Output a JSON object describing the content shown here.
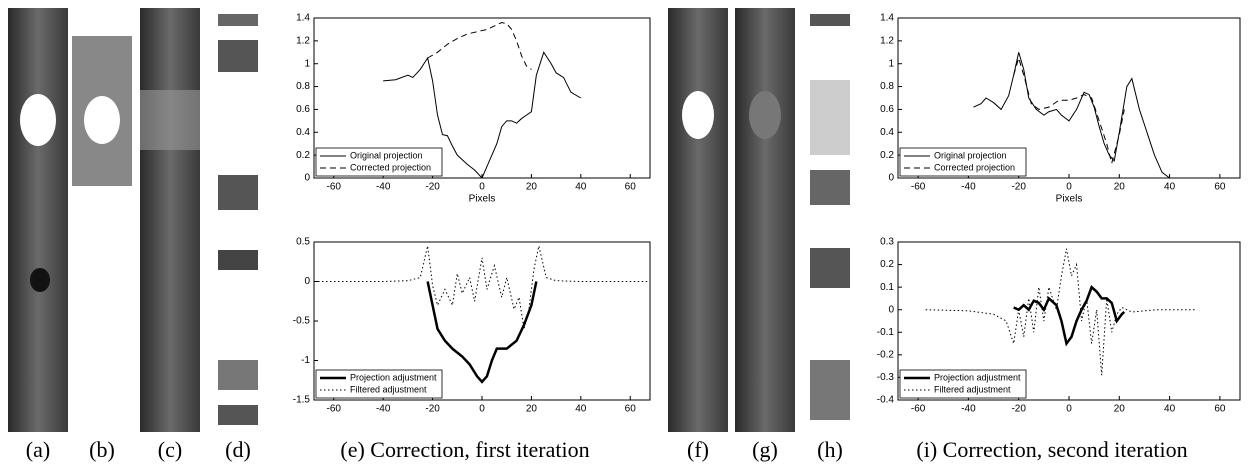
{
  "captions": [
    "(a)",
    "(b)",
    "(c)",
    "(d)",
    "(e) Correction, first iteration",
    "(f)",
    "(g)",
    "(h)",
    "(i) Correction, second iteration"
  ],
  "charts": [
    {
      "type": "line",
      "xlabel": "Pixels",
      "xlim": [
        -68,
        68
      ],
      "xticks": [
        -60,
        -40,
        -20,
        0,
        20,
        40,
        60
      ],
      "ylim": [
        0,
        1.4
      ],
      "yticks": [
        0,
        0.2,
        0.4,
        0.6,
        0.8,
        1,
        1.2,
        1.4
      ],
      "legend": "lower-left",
      "series": [
        {
          "name": "Original projection",
          "color": "#000000",
          "line_style": "solid",
          "line_width": 1,
          "x": [
            -40,
            -35,
            -30,
            -28,
            -25,
            -22,
            -20,
            -18,
            -16,
            -14,
            -12,
            -10,
            -6,
            -3,
            0,
            3,
            6,
            8,
            10,
            12,
            14,
            16,
            18,
            20,
            22,
            25,
            28,
            30,
            33,
            36,
            40
          ],
          "values": [
            0.85,
            0.86,
            0.9,
            0.88,
            0.95,
            1.05,
            0.85,
            0.55,
            0.38,
            0.37,
            0.28,
            0.2,
            0.12,
            0.07,
            0,
            0.15,
            0.3,
            0.45,
            0.5,
            0.5,
            0.48,
            0.52,
            0.55,
            0.58,
            0.9,
            1.1,
            1.0,
            0.92,
            0.88,
            0.75,
            0.7
          ]
        },
        {
          "name": "Corrected projection",
          "color": "#000000",
          "line_style": "dashed",
          "line_width": 1,
          "x": [
            -22,
            -18,
            -14,
            -10,
            -6,
            -2,
            2,
            6,
            8,
            10,
            12,
            14,
            16,
            18,
            20
          ],
          "values": [
            1.05,
            1.1,
            1.17,
            1.22,
            1.26,
            1.28,
            1.3,
            1.34,
            1.36,
            1.35,
            1.3,
            1.2,
            1.07,
            0.98,
            0.95
          ]
        }
      ]
    },
    {
      "type": "line",
      "xlim": [
        -68,
        68
      ],
      "xticks": [
        -60,
        -40,
        -20,
        0,
        20,
        40,
        60
      ],
      "ylim": [
        -1.5,
        0.5
      ],
      "yticks": [
        -1.5,
        -1,
        -0.5,
        0,
        0.5
      ],
      "legend": "lower-left",
      "series": [
        {
          "name": "Projection adjustment",
          "color": "#000000",
          "line_style": "solid",
          "line_width": 2.5,
          "x": [
            -22,
            -20,
            -18,
            -15,
            -12,
            -8,
            -5,
            -2,
            0,
            2,
            4,
            6,
            10,
            14,
            17,
            20,
            22
          ],
          "values": [
            0,
            -0.3,
            -0.6,
            -0.75,
            -0.85,
            -0.95,
            -1.05,
            -1.2,
            -1.27,
            -1.2,
            -1.0,
            -0.85,
            -0.85,
            -0.75,
            -0.55,
            -0.3,
            0
          ]
        },
        {
          "name": "Filtered adjustment",
          "color": "#000000",
          "line_style": "dotted",
          "line_width": 1,
          "x": [
            -68,
            -40,
            -30,
            -25,
            -22,
            -20,
            -18,
            -15,
            -12,
            -10,
            -8,
            -5,
            -3,
            0,
            2,
            5,
            8,
            10,
            13,
            15,
            17,
            19,
            21,
            23,
            26,
            30,
            40,
            68
          ],
          "values": [
            0,
            0,
            0.01,
            0.05,
            0.45,
            -0.05,
            -0.3,
            -0.1,
            -0.3,
            0.1,
            -0.15,
            0.05,
            -0.25,
            0.3,
            -0.1,
            0.2,
            -0.2,
            0.05,
            -0.35,
            -0.2,
            -0.6,
            -0.35,
            0.15,
            0.45,
            0.05,
            0.01,
            0,
            0
          ]
        }
      ]
    },
    {
      "type": "line",
      "xlabel": "Pixels",
      "xlim": [
        -68,
        68
      ],
      "xticks": [
        -60,
        -40,
        -20,
        0,
        20,
        40,
        60
      ],
      "ylim": [
        0,
        1.4
      ],
      "yticks": [
        0,
        0.2,
        0.4,
        0.6,
        0.8,
        1,
        1.2,
        1.4
      ],
      "legend": "lower-left",
      "series": [
        {
          "name": "Original projection",
          "color": "#000000",
          "line_style": "solid",
          "line_width": 1,
          "x": [
            -38,
            -35,
            -33,
            -30,
            -27,
            -24,
            -22,
            -20,
            -18,
            -16,
            -13,
            -10,
            -8,
            -5,
            -3,
            0,
            3,
            6,
            8,
            10,
            12,
            14,
            16,
            18,
            20,
            23,
            25,
            28,
            31,
            34,
            37,
            40
          ],
          "values": [
            0.62,
            0.65,
            0.7,
            0.66,
            0.6,
            0.72,
            0.9,
            1.1,
            0.95,
            0.7,
            0.6,
            0.55,
            0.58,
            0.6,
            0.55,
            0.5,
            0.6,
            0.75,
            0.73,
            0.62,
            0.45,
            0.3,
            0.2,
            0.15,
            0.4,
            0.8,
            0.87,
            0.6,
            0.4,
            0.2,
            0.05,
            0
          ]
        },
        {
          "name": "Corrected projection",
          "color": "#000000",
          "line_style": "dashed",
          "line_width": 1,
          "x": [
            -22,
            -20,
            -18,
            -15,
            -12,
            -8,
            -4,
            0,
            3,
            6,
            9,
            12,
            15,
            17,
            20,
            22
          ],
          "values": [
            0.9,
            1.05,
            0.9,
            0.65,
            0.6,
            0.62,
            0.68,
            0.68,
            0.7,
            0.73,
            0.7,
            0.5,
            0.3,
            0.13,
            0.38,
            0.6
          ]
        }
      ]
    },
    {
      "type": "line",
      "xlim": [
        -68,
        68
      ],
      "xticks": [
        -60,
        -40,
        -20,
        0,
        20,
        40,
        60
      ],
      "ylim": [
        -0.4,
        0.3
      ],
      "yticks": [
        -0.4,
        -0.3,
        -0.2,
        -0.1,
        0,
        0.1,
        0.2,
        0.3
      ],
      "legend": "lower-left",
      "series": [
        {
          "name": "Projection adjustment",
          "color": "#000000",
          "line_style": "solid",
          "line_width": 2.5,
          "x": [
            -22,
            -20,
            -18,
            -16,
            -14,
            -12,
            -10,
            -8,
            -5,
            -3,
            -1,
            1,
            3,
            5,
            7,
            9,
            11,
            13,
            15,
            17,
            19,
            21,
            22
          ],
          "values": [
            0.01,
            0,
            0.02,
            0,
            0.04,
            0.03,
            0,
            0.05,
            0.02,
            -0.05,
            -0.15,
            -0.12,
            -0.05,
            0,
            0.04,
            0.1,
            0.08,
            0.05,
            0.05,
            0.03,
            -0.05,
            -0.02,
            -0.01
          ]
        },
        {
          "name": "Filtered adjustment",
          "color": "#000000",
          "line_style": "dotted",
          "line_width": 1,
          "x": [
            -57,
            -40,
            -30,
            -25,
            -22,
            -20,
            -18,
            -16,
            -14,
            -12,
            -10,
            -8,
            -5,
            -3,
            -1,
            1,
            3,
            5,
            7,
            9,
            11,
            13,
            15,
            17,
            19,
            21,
            25,
            35,
            50
          ],
          "values": [
            0,
            -0.005,
            -0.02,
            -0.05,
            -0.15,
            0,
            -0.12,
            0.05,
            -0.1,
            0.1,
            -0.05,
            0.1,
            0,
            0.15,
            0.27,
            0.15,
            0.2,
            -0.05,
            0.05,
            -0.15,
            0,
            -0.29,
            0.05,
            -0.1,
            -0.02,
            0.01,
            -0.01,
            0,
            0
          ]
        }
      ]
    }
  ]
}
